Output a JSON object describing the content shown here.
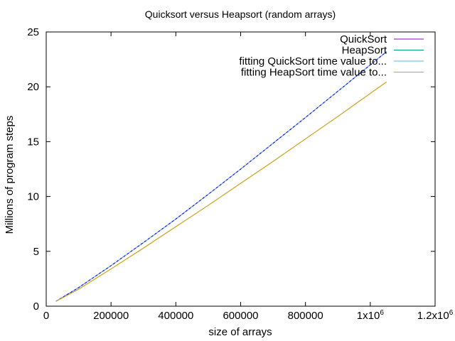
{
  "chart_data": {
    "type": "line",
    "title": "Quicksort versus Heapsort (random arrays)",
    "xlabel": "size of arrays",
    "ylabel": "Millions of program steps",
    "xlim": [
      0,
      1200000
    ],
    "ylim": [
      0,
      25
    ],
    "x_ticks": [
      0,
      200000,
      400000,
      600000,
      800000,
      1000000,
      1200000
    ],
    "x_tick_labels": [
      "0",
      "200000",
      "400000",
      "600000",
      "800000",
      "1x10",
      "1.2x10"
    ],
    "x_tick_sup": [
      "",
      "",
      "",
      "",
      "",
      "6",
      "6"
    ],
    "y_ticks": [
      0,
      5,
      10,
      15,
      20,
      25
    ],
    "y_tick_labels": [
      "0",
      "5",
      "10",
      "15",
      "20",
      "25"
    ],
    "grid": false,
    "legend_position": "top-right",
    "x": [
      30000,
      100000,
      200000,
      300000,
      400000,
      500000,
      600000,
      700000,
      800000,
      900000,
      1000000,
      1050000
    ],
    "series": [
      {
        "name": "QuickSort",
        "color": "#9400d3",
        "dash": "solid",
        "values": [
          0.45,
          1.7,
          3.7,
          5.8,
          7.95,
          10.2,
          12.5,
          14.85,
          17.2,
          19.6,
          22.0,
          23.2
        ]
      },
      {
        "name": "HeapSort",
        "color": "#009e73",
        "dash": "solid",
        "values": [
          0.45,
          1.55,
          3.4,
          5.3,
          7.25,
          9.2,
          11.2,
          13.2,
          15.25,
          17.3,
          19.4,
          20.45
        ]
      },
      {
        "name": "fitting QuickSort time value to...",
        "color": "#56b4e9",
        "dash": "dashed",
        "overlay_color": "#0000ff",
        "values": [
          0.45,
          1.7,
          3.7,
          5.8,
          7.95,
          10.2,
          12.5,
          14.85,
          17.2,
          19.6,
          22.0,
          23.2
        ]
      },
      {
        "name": "fitting HeapSort time value to...",
        "color": "#e69f00",
        "dash": "solid",
        "values": [
          0.45,
          1.55,
          3.4,
          5.3,
          7.25,
          9.2,
          11.2,
          13.2,
          15.25,
          17.3,
          19.4,
          20.45
        ]
      }
    ]
  }
}
